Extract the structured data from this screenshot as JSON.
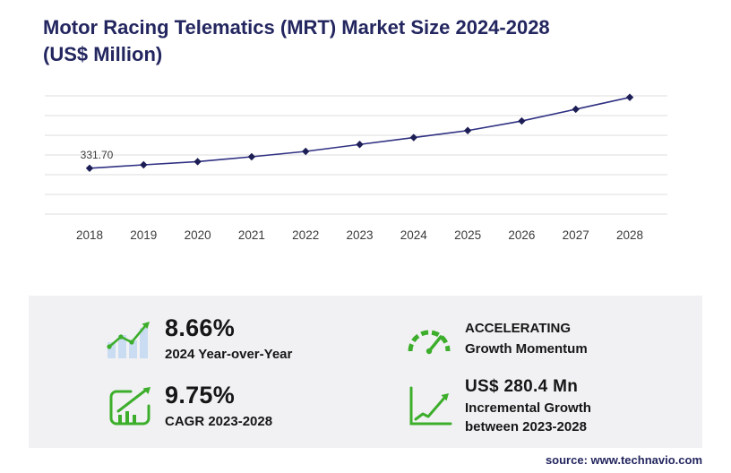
{
  "title_line1": "Motor Racing Telematics (MRT) Market Size 2024-2028",
  "title_line2": "(US$ Million)",
  "chart_data": {
    "type": "line",
    "title": "Motor Racing Telematics (MRT) Market Size 2024-2028 (US$ Million)",
    "x": [
      "2018",
      "2019",
      "2020",
      "2021",
      "2022",
      "2023",
      "2024",
      "2025",
      "2026",
      "2027",
      "2028"
    ],
    "values": [
      331.7,
      352,
      371,
      400,
      432,
      473.4,
      514.4,
      556,
      613,
      683,
      753.8
    ],
    "first_point_label": "331.70",
    "ylabel": "US$ Million",
    "xlabel": "",
    "ylim": [
      0,
      800
    ],
    "gridlines": 7,
    "grid_on": true,
    "legend": "none",
    "line_color": "#2f3082",
    "marker_color": "#1c1e55",
    "grid_color": "#dcdcdc",
    "tick_color": "#3a3a3a"
  },
  "stats": {
    "yoy": {
      "value": "8.66%",
      "label": "2024 Year-over-Year",
      "icon": "bar-chart-uptrend-icon"
    },
    "momentum": {
      "line1": "ACCELERATING",
      "line2": "Growth Momentum",
      "icon": "gauge-icon"
    },
    "cagr": {
      "value": "9.75%",
      "label": "CAGR 2023-2028",
      "icon": "cagr-chart-icon"
    },
    "incremental": {
      "value": "US$ 280.4 Mn",
      "line1": "Incremental Growth",
      "line2": "between 2023-2028",
      "icon": "growth-arrow-icon"
    }
  },
  "source": "source: www.technavio.com",
  "colors": {
    "navy": "#23265f",
    "green": "#3dae2b",
    "light_blue": "#c9dcf2",
    "panel_bg": "#f1f1f4",
    "text": "#161616"
  }
}
